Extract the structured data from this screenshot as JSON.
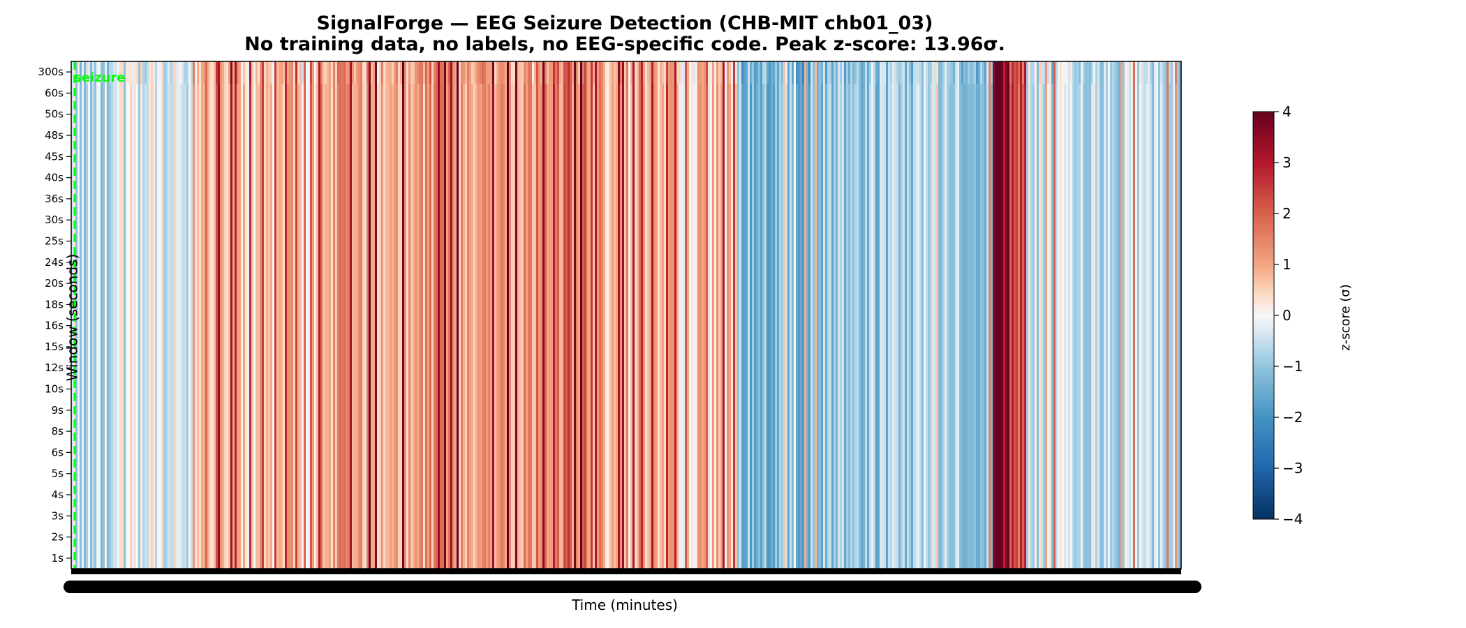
{
  "chart_data": {
    "type": "heatmap",
    "title": "SignalForge — EEG Seizure Detection (CHB-MIT chb01_03)",
    "subtitle": "No training data, no labels, no EEG-specific code. Peak z-score: 13.96σ.",
    "xlabel": "Time (minutes)",
    "ylabel": "Window (seconds)",
    "y_categories": [
      "1s",
      "2s",
      "3s",
      "4s",
      "5s",
      "6s",
      "8s",
      "9s",
      "10s",
      "12s",
      "15s",
      "16s",
      "18s",
      "20s",
      "24s",
      "25s",
      "30s",
      "36s",
      "40s",
      "45s",
      "48s",
      "50s",
      "60s",
      "300s"
    ],
    "colorbar": {
      "label": "z-score (σ)",
      "range": [
        -4,
        4
      ],
      "ticks": [
        "−4",
        "−3",
        "−2",
        "−1",
        "0",
        "1",
        "2",
        "3",
        "4"
      ],
      "colormap": "RdBu_r"
    },
    "annotation": {
      "text": "seizure",
      "color": "#00ff00",
      "x_fraction": 0.003
    },
    "profile": {
      "segments": [
        {
          "from": 0.0,
          "to": 0.04,
          "mean_z": -0.6
        },
        {
          "from": 0.04,
          "to": 0.11,
          "mean_z": -0.3
        },
        {
          "from": 0.11,
          "to": 0.22,
          "mean_z": 0.6
        },
        {
          "from": 0.22,
          "to": 0.38,
          "mean_z": 1.1
        },
        {
          "from": 0.38,
          "to": 0.48,
          "mean_z": 1.3
        },
        {
          "from": 0.48,
          "to": 0.51,
          "mean_z": 0.5
        },
        {
          "from": 0.51,
          "to": 0.6,
          "mean_z": 0.6
        },
        {
          "from": 0.6,
          "to": 0.7,
          "mean_z": -1.1
        },
        {
          "from": 0.7,
          "to": 0.83,
          "mean_z": -0.9
        },
        {
          "from": 0.83,
          "to": 0.846,
          "mean_z": 3.7
        },
        {
          "from": 0.846,
          "to": 0.86,
          "mean_z": 2.2
        },
        {
          "from": 0.86,
          "to": 0.93,
          "mean_z": -0.4
        },
        {
          "from": 0.93,
          "to": 1.0,
          "mean_z": -0.6
        }
      ]
    }
  }
}
